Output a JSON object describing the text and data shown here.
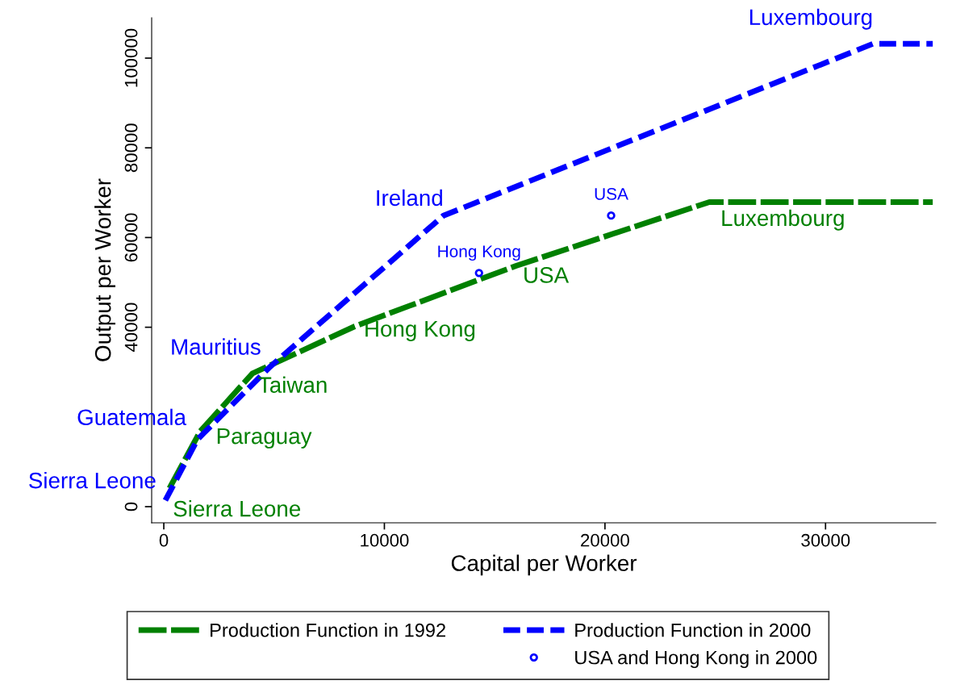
{
  "chart_data": {
    "type": "line",
    "xlabel": "Capital per Worker",
    "ylabel": "Output per Worker",
    "xlim": [
      -550,
      35000
    ],
    "ylim": [
      -3600,
      109000
    ],
    "xticks": [
      0,
      10000,
      20000,
      30000
    ],
    "yticks": [
      0,
      40000,
      60000,
      80000,
      100000
    ],
    "grid": false,
    "legend": "bottom",
    "marker": "none",
    "series": [
      {
        "name": "Production Function in 1992",
        "color": "#008000",
        "line_style": "dashed",
        "x": [
          256,
          1650,
          4020,
          8660,
          15970,
          24730,
          34860
        ],
        "values": [
          4100,
          16800,
          29700,
          40200,
          53700,
          67900,
          67900
        ]
      },
      {
        "name": "Production Function in 2000",
        "color": "#0000ff",
        "line_style": "dashed",
        "x": [
          70,
          1530,
          4820,
          12680,
          32150,
          34860
        ],
        "values": [
          1400,
          15000,
          31200,
          64900,
          103200,
          103200
        ]
      },
      {
        "name": "USA and Hong Kong in 2000",
        "type": "scatter",
        "marker": "circle",
        "color": "#0000ff",
        "x": [
          14290,
          20280
        ],
        "values": [
          52100,
          64900
        ]
      }
    ],
    "annotations": [
      {
        "text": "Sierra Leone",
        "x": 256,
        "y": 4100
      },
      {
        "text": "Paraguay",
        "x": 1650,
        "y": 16800
      },
      {
        "text": "Taiwan",
        "x": 4020,
        "y": 29700
      },
      {
        "text": "Hong Kong",
        "x": 8660,
        "y": 40200
      },
      {
        "text": "USA",
        "x": 15970,
        "y": 53700
      },
      {
        "text": "Luxembourg",
        "x": 24730,
        "y": 67900
      },
      {
        "text": "Sierra Leone",
        "x": 70,
        "y": 1400
      },
      {
        "text": "Guatemala",
        "x": 1530,
        "y": 15000
      },
      {
        "text": "Mauritius",
        "x": 4820,
        "y": 31200
      },
      {
        "text": "Ireland",
        "x": 12680,
        "y": 64900
      },
      {
        "text": "Luxembourg",
        "x": 32150,
        "y": 103200
      },
      {
        "text": "Hong Kong",
        "x": 14290,
        "y": 52100
      },
      {
        "text": "USA",
        "x": 20280,
        "y": 64900
      }
    ]
  }
}
